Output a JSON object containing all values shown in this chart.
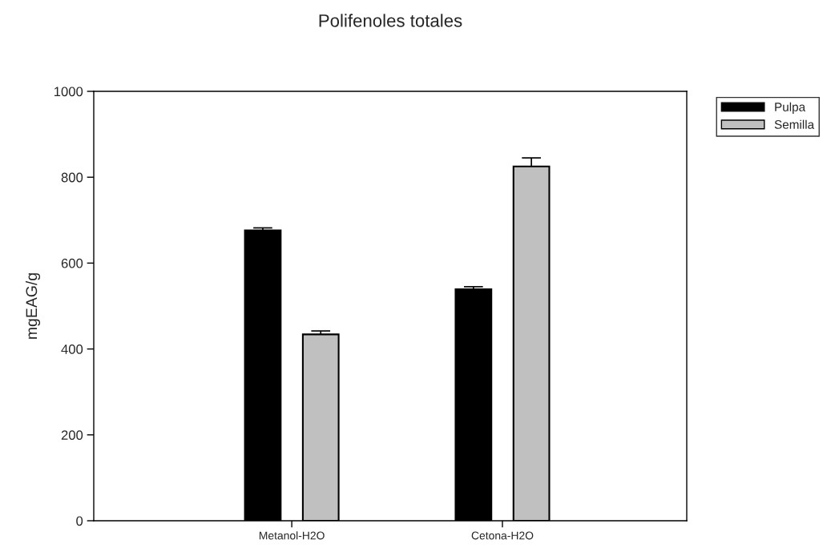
{
  "chart_data": {
    "type": "bar",
    "title": "Polifenoles totales",
    "ylabel": "mgEAG/g",
    "categories": [
      "Metanol-H2O",
      "Cetona-H2O"
    ],
    "series": [
      {
        "name": "Pulpa",
        "color": "#000000",
        "values": [
          676,
          539
        ],
        "errors": [
          [
            676,
            682
          ],
          [
            539,
            545
          ]
        ]
      },
      {
        "name": "Semilla",
        "color": "#c0c0c0",
        "values": [
          434,
          825
        ],
        "errors": [
          [
            434,
            442
          ],
          [
            825,
            845
          ]
        ]
      }
    ],
    "ylim": [
      0,
      1000
    ],
    "yticks": [
      0,
      200,
      400,
      600,
      800,
      1000
    ],
    "grid": false,
    "legend": "top right"
  }
}
